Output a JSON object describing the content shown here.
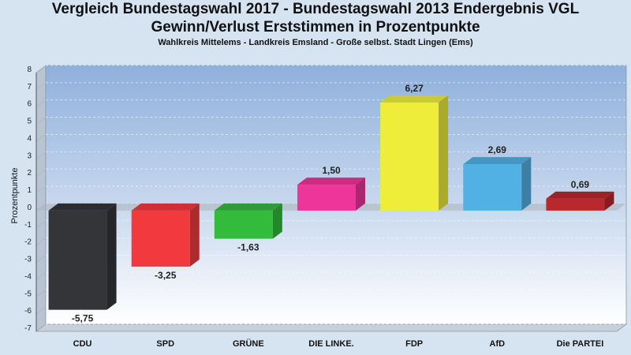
{
  "title_line1": "Vergleich Bundestagswahl 2017 - Bundestagswahl 2013 Endergebnis VGL",
  "title_line2": "Gewinn/Verlust Erststimmen in Prozentpunkte",
  "subtitle": "Wahlkreis Mittelems - Landkreis Emsland - Große selbst. Stadt Lingen (Ems)",
  "chart_data": {
    "type": "bar",
    "title": "Vergleich Bundestagswahl 2017 - Bundestagswahl 2013 Endergebnis VGL",
    "subtitle": "Gewinn/Verlust Erststimmen in Prozentpunkte",
    "xlabel": "",
    "ylabel": "Prozentpunkte",
    "ylim": [
      -7,
      8
    ],
    "yticks": [
      8,
      7,
      6,
      5,
      4,
      3,
      2,
      1,
      0,
      -1,
      -2,
      -3,
      -4,
      -5,
      -6,
      -7
    ],
    "grid": true,
    "categories": [
      "CDU",
      "SPD",
      "GRÜNE",
      "DIE LINKE.",
      "FDP",
      "AfD",
      "Die PARTEI"
    ],
    "values": [
      -5.75,
      -3.25,
      -1.63,
      1.5,
      6.27,
      2.69,
      0.69
    ],
    "value_labels": [
      "-5,75",
      "-3,25",
      "-1,63",
      "1,50",
      "6,27",
      "2,69",
      "0,69"
    ],
    "colors": [
      "#333538",
      "#f23a3e",
      "#33bb3c",
      "#ee3599",
      "#eeee3a",
      "#52b1e4",
      "#b9282d"
    ]
  }
}
